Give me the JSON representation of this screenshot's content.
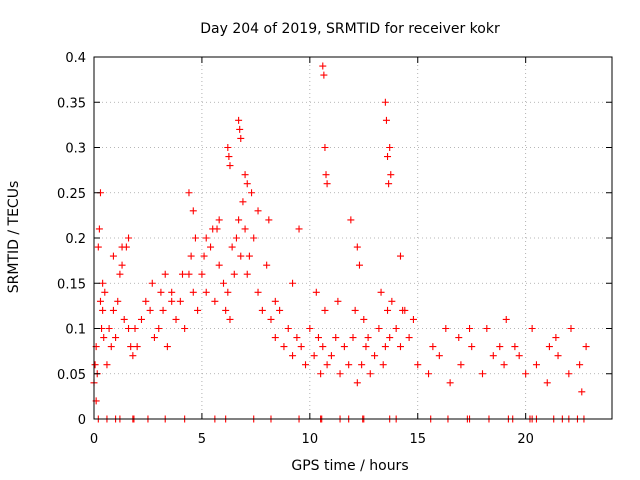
{
  "chart_data": {
    "type": "scatter",
    "title": "Day 204 of 2019, SRMTID for receiver kokr",
    "xlabel": "GPS time / hours",
    "ylabel": "SRMTID / TECUs",
    "xlim": [
      0,
      24
    ],
    "ylim": [
      0,
      0.4
    ],
    "grid": true,
    "marker": "+",
    "color": "#ff0000",
    "xticks": [
      0,
      5,
      10,
      15,
      20
    ],
    "xtick_labels": [
      "0",
      "5",
      "10",
      "15",
      "20"
    ],
    "yticks": [
      0,
      0.05,
      0.1,
      0.15,
      0.2,
      0.25,
      0.3,
      0.35,
      0.4
    ],
    "ytick_labels": [
      "0",
      "0.05",
      "0.1",
      "0.15",
      "0.2",
      "0.25",
      "0.3",
      "0.35",
      "0.4"
    ],
    "series": [
      {
        "name": "SRMTID",
        "x": [
          0.05,
          0.1,
          0.15,
          0.2,
          0.25,
          0.3,
          0.35,
          0.4,
          0.45,
          0.5,
          0.6,
          0.7,
          0.8,
          0.9,
          1.0,
          1.1,
          1.2,
          1.3,
          1.4,
          1.5,
          1.6,
          1.7,
          1.8,
          1.9,
          2.0,
          2.2,
          2.4,
          2.6,
          2.8,
          3.0,
          3.2,
          3.4,
          3.6,
          3.8,
          4.0,
          4.2,
          4.4,
          4.5,
          4.6,
          4.7,
          4.8,
          5.0,
          5.2,
          5.4,
          5.6,
          5.8,
          6.0,
          6.1,
          6.2,
          6.3,
          6.5,
          6.6,
          6.7,
          6.8,
          6.9,
          7.0,
          7.1,
          7.2,
          7.4,
          7.6,
          7.8,
          8.0,
          8.2,
          8.4,
          8.6,
          8.8,
          9.0,
          9.2,
          9.4,
          9.6,
          9.8,
          10.0,
          10.2,
          10.4,
          10.5,
          10.6,
          10.7,
          10.8,
          11.0,
          11.2,
          11.4,
          11.6,
          11.8,
          12.0,
          12.2,
          12.4,
          12.6,
          12.8,
          13.0,
          13.2,
          13.4,
          13.5,
          13.6,
          13.7,
          13.8,
          14.0,
          14.2,
          14.4,
          14.6,
          14.8,
          15.0,
          15.5,
          16.0,
          16.5,
          17.0,
          17.5,
          18.0,
          18.5,
          19.0,
          19.5,
          20.0,
          20.5,
          21.0,
          21.5,
          22.0,
          22.5,
          22.8,
          0.3,
          0.4,
          0.9,
          1.3,
          1.6,
          3.3,
          4.4,
          4.6,
          5.2,
          5.5,
          5.8,
          6.2,
          6.25,
          6.3,
          6.7,
          6.75,
          6.8,
          7.0,
          7.1,
          7.3,
          7.6,
          8.1,
          9.5,
          10.6,
          10.65,
          10.7,
          10.75,
          10.8,
          11.9,
          12.2,
          12.3,
          13.5,
          13.55,
          13.6,
          13.65,
          13.7,
          13.75,
          14.2,
          16.3,
          17.4,
          18.2,
          19.1,
          20.3,
          21.4,
          22.1,
          2.7,
          3.1,
          3.6,
          4.1,
          5.1,
          5.7,
          6.4,
          8.4,
          9.2,
          10.3,
          11.3,
          12.1,
          12.5,
          12.7,
          13.3,
          14.3,
          15.7,
          16.9,
          18.8,
          19.7,
          21.1,
          22.6,
          0.0,
          0.1,
          0.2,
          0.6,
          1.0,
          1.2,
          1.8,
          1.85,
          2.5,
          3.3,
          4.2,
          5.6,
          6.1,
          7.4,
          8.2,
          9.5,
          10.5,
          10.55,
          11.4,
          11.8,
          12.45,
          12.5,
          13.7,
          14.0,
          15.6,
          16.4,
          17.3,
          17.4,
          18.3,
          19.2,
          19.4,
          20.2,
          20.3,
          20.5,
          21.3,
          21.7,
          22.0,
          22.4,
          22.7
        ],
        "y": [
          0.06,
          0.08,
          0.05,
          0.19,
          0.21,
          0.13,
          0.1,
          0.12,
          0.09,
          0.14,
          0.06,
          0.1,
          0.08,
          0.12,
          0.09,
          0.13,
          0.16,
          0.17,
          0.11,
          0.19,
          0.1,
          0.08,
          0.07,
          0.1,
          0.08,
          0.11,
          0.13,
          0.12,
          0.09,
          0.1,
          0.12,
          0.08,
          0.14,
          0.11,
          0.13,
          0.1,
          0.16,
          0.18,
          0.14,
          0.2,
          0.12,
          0.16,
          0.14,
          0.19,
          0.13,
          0.17,
          0.15,
          0.12,
          0.14,
          0.11,
          0.16,
          0.2,
          0.22,
          0.18,
          0.24,
          0.21,
          0.16,
          0.18,
          0.2,
          0.14,
          0.12,
          0.17,
          0.11,
          0.09,
          0.12,
          0.08,
          0.1,
          0.07,
          0.09,
          0.08,
          0.06,
          0.1,
          0.07,
          0.09,
          0.05,
          0.08,
          0.12,
          0.06,
          0.07,
          0.09,
          0.05,
          0.08,
          0.06,
          0.09,
          0.04,
          0.06,
          0.08,
          0.05,
          0.07,
          0.1,
          0.06,
          0.08,
          0.12,
          0.09,
          0.13,
          0.1,
          0.08,
          0.12,
          0.09,
          0.11,
          0.06,
          0.05,
          0.07,
          0.04,
          0.06,
          0.08,
          0.05,
          0.07,
          0.06,
          0.08,
          0.05,
          0.06,
          0.04,
          0.07,
          0.05,
          0.06,
          0.08,
          0.25,
          0.15,
          0.18,
          0.19,
          0.2,
          0.16,
          0.25,
          0.23,
          0.2,
          0.21,
          0.22,
          0.3,
          0.29,
          0.28,
          0.33,
          0.32,
          0.31,
          0.27,
          0.26,
          0.25,
          0.23,
          0.22,
          0.21,
          0.39,
          0.38,
          0.3,
          0.27,
          0.26,
          0.22,
          0.19,
          0.17,
          0.35,
          0.33,
          0.29,
          0.26,
          0.3,
          0.27,
          0.18,
          0.1,
          0.1,
          0.1,
          0.11,
          0.1,
          0.09,
          0.1,
          0.15,
          0.14,
          0.13,
          0.16,
          0.18,
          0.21,
          0.19,
          0.13,
          0.15,
          0.14,
          0.13,
          0.12,
          0.11,
          0.09,
          0.14,
          0.12,
          0.08,
          0.09,
          0.08,
          0.07,
          0.08,
          0.03,
          0.04,
          0.02,
          0.0,
          0.0,
          0.0,
          0.0,
          0.0,
          0.0,
          0.0,
          0.0,
          0.0,
          0.0,
          0.0,
          0.0,
          0.0,
          0.0,
          0.0,
          0.0,
          0.0,
          0.0,
          0.0,
          0.0,
          0.0,
          0.0,
          0.0,
          0.0,
          0.0,
          0.0,
          0.0,
          0.0,
          0.0,
          0.0,
          0.0,
          0.0,
          0.0,
          0.0,
          0.0,
          0.0,
          0.0
        ]
      }
    ]
  }
}
